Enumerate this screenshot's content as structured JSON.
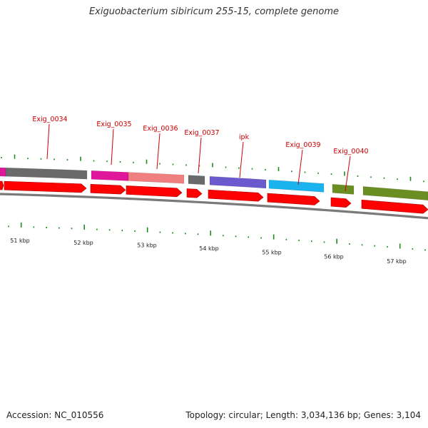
{
  "title": "Exiguobacterium sibiricum 255-15, complete genome",
  "accession_text": "Accession: NC_010556",
  "summary_text": "Topology: circular; Length: 3,034,136 bp; Genes: 3,104",
  "colors": {
    "backbone": "#8a8a8a",
    "cds": "#ff0000",
    "tick": "#1f8a1f",
    "label": "#cc0000",
    "gene_magenta": "#e0179a",
    "gene_gray": "#6a6a6a",
    "gene_pink": "#f08080",
    "gene_purple": "#6a5acd",
    "gene_cyan": "#1ab3f0",
    "gene_olive": "#6b8e23"
  },
  "scale_labels": [
    "51 kbp",
    "52 kbp",
    "53 kbp",
    "54 kbp",
    "55 kbp",
    "56 kbp",
    "57 kbp"
  ],
  "gene_labels": [
    "Exig_0034",
    "Exig_0035",
    "Exig_0036",
    "Exig_0037",
    "ipk",
    "Exig_0039",
    "Exig_0040"
  ]
}
